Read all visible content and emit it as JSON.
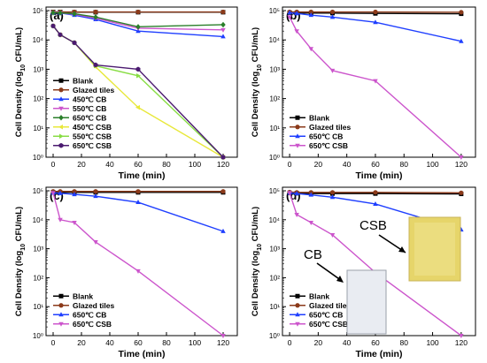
{
  "chart_data": [
    {
      "panel_label": "(a)",
      "type": "line",
      "xlabel": "Time (min)",
      "ylabel": "Cell Density (log10 CFU/mL)",
      "xlim": [
        -5,
        130
      ],
      "ylim": [
        1,
        100000
      ],
      "y_scale": "log",
      "x_ticks": [
        0,
        20,
        40,
        60,
        80,
        100,
        120
      ],
      "legend_position": "bottom-left",
      "series": [
        {
          "name": "Blank",
          "color": "#000000",
          "marker": "square",
          "x": [
            0,
            5,
            15,
            30,
            60,
            120
          ],
          "y": [
            90000,
            90000,
            88000,
            88000,
            88000,
            88000
          ]
        },
        {
          "name": "Glazed tiles",
          "color": "#8b3a1a",
          "marker": "circle",
          "x": [
            0,
            5,
            15,
            30,
            60,
            120
          ],
          "y": [
            90000,
            90000,
            90000,
            90000,
            90000,
            90000
          ]
        },
        {
          "name": "450℃ CB",
          "color": "#1f3fff",
          "marker": "triangle-up",
          "x": [
            0,
            5,
            15,
            30,
            60,
            120
          ],
          "y": [
            85000,
            83000,
            70000,
            50000,
            20000,
            13000
          ]
        },
        {
          "name": "550℃ CB",
          "color": "#cc55cc",
          "marker": "triangle-down",
          "x": [
            0,
            5,
            15,
            30,
            60,
            120
          ],
          "y": [
            85000,
            83000,
            75000,
            55000,
            25000,
            22000
          ]
        },
        {
          "name": "650℃ CB",
          "color": "#2a7f2a",
          "marker": "diamond",
          "x": [
            0,
            5,
            15,
            30,
            60,
            120
          ],
          "y": [
            85000,
            83000,
            78000,
            60000,
            28000,
            33000
          ]
        },
        {
          "name": "450℃ CSB",
          "color": "#e8e83a",
          "marker": "triangle-left",
          "x": [
            0,
            5,
            15,
            30,
            60,
            120
          ],
          "y": [
            30000,
            15000,
            8000,
            1200,
            50,
            1
          ]
        },
        {
          "name": "550℃ CSB",
          "color": "#88dd44",
          "marker": "triangle-right",
          "x": [
            0,
            5,
            15,
            30,
            60,
            120
          ],
          "y": [
            30000,
            15000,
            8000,
            1300,
            600,
            1
          ]
        },
        {
          "name": "650℃ CSB",
          "color": "#4b1a70",
          "marker": "hexagon",
          "x": [
            0,
            5,
            15,
            30,
            60,
            120
          ],
          "y": [
            30000,
            15000,
            8000,
            1400,
            1000,
            1
          ]
        }
      ]
    },
    {
      "panel_label": "(b)",
      "type": "line",
      "xlabel": "Time (min)",
      "ylabel": "Cell Density (log10 CFU/mL)",
      "xlim": [
        -5,
        130
      ],
      "ylim": [
        1,
        100000
      ],
      "y_scale": "log",
      "x_ticks": [
        0,
        20,
        40,
        60,
        80,
        100,
        120
      ],
      "legend_position": "bottom-left",
      "series": [
        {
          "name": "Blank",
          "color": "#000000",
          "marker": "square",
          "x": [
            0,
            5,
            15,
            30,
            60,
            120
          ],
          "y": [
            85000,
            83000,
            82000,
            82000,
            80000,
            78000
          ]
        },
        {
          "name": "Glazed tiles",
          "color": "#8b3a1a",
          "marker": "circle",
          "x": [
            0,
            5,
            15,
            30,
            60,
            120
          ],
          "y": [
            90000,
            90000,
            90000,
            90000,
            90000,
            88000
          ]
        },
        {
          "name": "650℃ CB",
          "color": "#1f3fff",
          "marker": "triangle-up",
          "x": [
            0,
            5,
            15,
            30,
            60,
            120
          ],
          "y": [
            85000,
            80000,
            70000,
            60000,
            40000,
            9000
          ]
        },
        {
          "name": "650℃ CSB",
          "color": "#cc55cc",
          "marker": "triangle-down",
          "x": [
            0,
            5,
            15,
            30,
            60,
            120
          ],
          "y": [
            60000,
            20000,
            5000,
            900,
            400,
            1
          ]
        }
      ]
    },
    {
      "panel_label": "(c)",
      "type": "line",
      "xlabel": "Time (min)",
      "ylabel": "Cell Density (log10 CFU/mL)",
      "xlim": [
        -5,
        130
      ],
      "ylim": [
        1,
        100000
      ],
      "y_scale": "log",
      "x_ticks": [
        0,
        20,
        40,
        60,
        80,
        100,
        120
      ],
      "legend_position": "bottom-left",
      "series": [
        {
          "name": "Blank",
          "color": "#000000",
          "marker": "square",
          "x": [
            0,
            5,
            15,
            30,
            60,
            120
          ],
          "y": [
            90000,
            88000,
            88000,
            88000,
            88000,
            88000
          ]
        },
        {
          "name": "Glazed tiles",
          "color": "#8b3a1a",
          "marker": "circle",
          "x": [
            0,
            5,
            15,
            30,
            60,
            120
          ],
          "y": [
            95000,
            95000,
            95000,
            95000,
            95000,
            95000
          ]
        },
        {
          "name": "650℃ CB",
          "color": "#1f3fff",
          "marker": "triangle-up",
          "x": [
            0,
            5,
            15,
            30,
            60,
            120
          ],
          "y": [
            85000,
            82000,
            75000,
            65000,
            40000,
            4000
          ]
        },
        {
          "name": "650℃ CSB",
          "color": "#cc55cc",
          "marker": "triangle-down",
          "x": [
            0,
            5,
            15,
            30,
            60,
            120
          ],
          "y": [
            85000,
            10000,
            8000,
            1700,
            170,
            1
          ]
        }
      ]
    },
    {
      "panel_label": "(d)",
      "type": "line",
      "xlabel": "Time (min)",
      "ylabel": "Cell Density (log10 CFU/mL)",
      "xlim": [
        -5,
        130
      ],
      "ylim": [
        1,
        100000
      ],
      "y_scale": "log",
      "x_ticks": [
        0,
        20,
        40,
        60,
        80,
        100,
        120
      ],
      "legend_position": "bottom-left",
      "annotations": [
        "CSB",
        "CB"
      ],
      "series": [
        {
          "name": "Blank",
          "color": "#000000",
          "marker": "square",
          "x": [
            0,
            5,
            15,
            30,
            60,
            120
          ],
          "y": [
            85000,
            82000,
            80000,
            80000,
            80000,
            78000
          ]
        },
        {
          "name": "Glazed tiles",
          "color": "#8b3a1a",
          "marker": "circle",
          "x": [
            0,
            5,
            15,
            30,
            60,
            120
          ],
          "y": [
            90000,
            88000,
            88000,
            88000,
            88000,
            85000
          ]
        },
        {
          "name": "650℃ CB",
          "color": "#1f3fff",
          "marker": "triangle-up",
          "x": [
            0,
            5,
            15,
            30,
            60,
            120
          ],
          "y": [
            85000,
            80000,
            72000,
            60000,
            35000,
            4500
          ]
        },
        {
          "name": "650℃ CSB",
          "color": "#cc55cc",
          "marker": "triangle-down",
          "x": [
            0,
            5,
            15,
            30,
            60,
            120
          ],
          "y": [
            85000,
            15000,
            8000,
            3000,
            150,
            1
          ]
        }
      ]
    }
  ]
}
